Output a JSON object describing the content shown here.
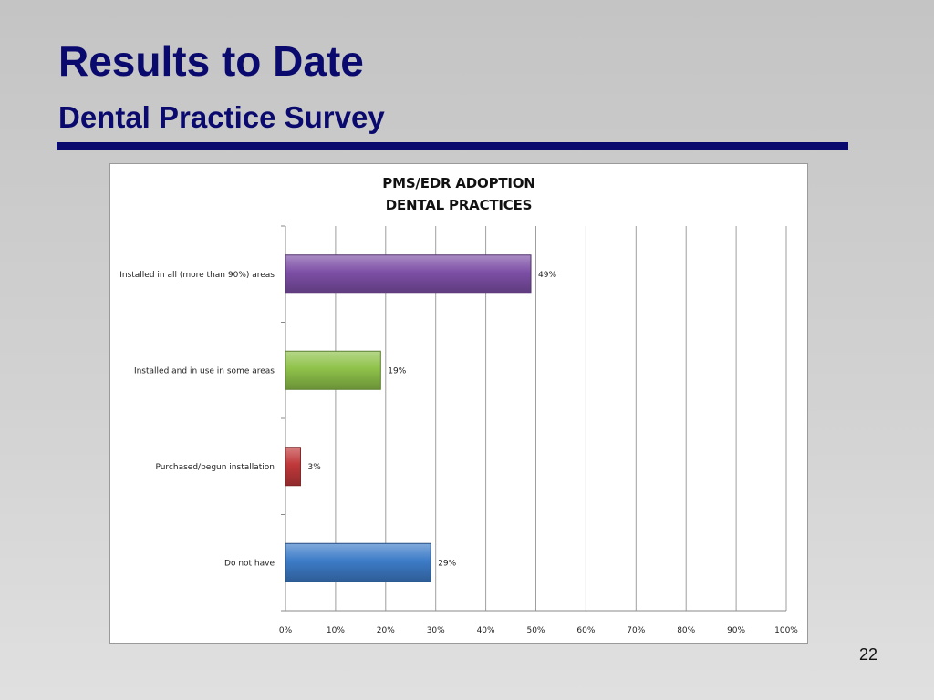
{
  "slide": {
    "title": "Results to Date",
    "subtitle": "Dental Practice Survey",
    "page_number": "22",
    "title_color": "#0a0a6e"
  },
  "chart_data": {
    "type": "bar",
    "orientation": "horizontal",
    "title": "PMS/EDR ADOPTION\nDENTAL PRACTICES",
    "title_lines": [
      "PMS/EDR ADOPTION",
      "DENTAL PRACTICES"
    ],
    "categories": [
      "Installed in all (more than 90%) areas",
      "Installed and in use in some areas",
      "Purchased/begun installation",
      "Do not have"
    ],
    "values": [
      49,
      19,
      3,
      29
    ],
    "value_labels": [
      "49%",
      "19%",
      "3%",
      "29%"
    ],
    "bar_colors": [
      "#7d4fa6",
      "#8fc24a",
      "#c0383a",
      "#3d7cc8"
    ],
    "xlim": [
      0,
      100
    ],
    "x_ticks": [
      "0%",
      "10%",
      "20%",
      "30%",
      "40%",
      "50%",
      "60%",
      "70%",
      "80%",
      "90%",
      "100%"
    ],
    "xlabel": "",
    "ylabel": "",
    "grid": "vertical",
    "legend": "none"
  }
}
